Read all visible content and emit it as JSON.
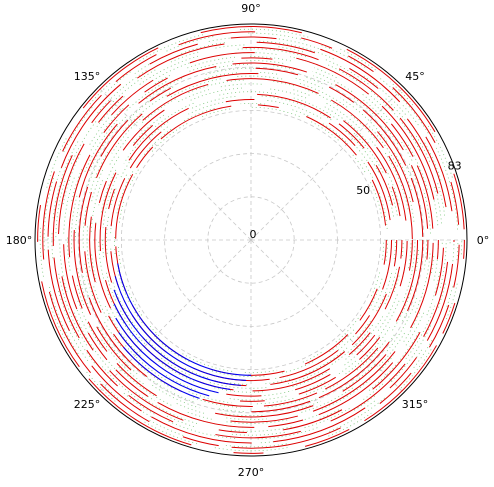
{
  "chart_data": {
    "type": "polar-segments",
    "title": "",
    "theta_ticks_deg": [
      0,
      45,
      90,
      135,
      180,
      225,
      270,
      315
    ],
    "theta_tick_labels": [
      "0°",
      "45°",
      "90°",
      "135°",
      "180°",
      "225°",
      "270°",
      "315°"
    ],
    "r_tick_labels": [
      "0",
      "50",
      "83"
    ],
    "r_ticks": [
      0,
      50,
      83
    ],
    "rlim": [
      0,
      83
    ],
    "grid": true,
    "colors": {
      "primary": "#dd0000",
      "highlight": "#0000ee",
      "dots": "#7ec87e",
      "grid": "#c8c8c8"
    },
    "series": [
      {
        "color": "#dd0000",
        "style": "solid-arcs",
        "r_range": [
          50,
          83
        ],
        "description_values": {
          "radial_levels": [
            52,
            54,
            56,
            58,
            60,
            62,
            64,
            66,
            68,
            70,
            72,
            74,
            76,
            78,
            80,
            82
          ],
          "gaps_deg": [
            [
              60,
              75
            ],
            [
              100,
              115
            ],
            [
              150,
              160
            ],
            [
              240,
              255
            ],
            [
              330,
              340
            ]
          ]
        }
      },
      {
        "color": "#0000ee",
        "style": "solid-arcs",
        "arcs": [
          {
            "r": 52,
            "theta": [
              190,
              270
            ]
          },
          {
            "r": 54,
            "theta": [
              195,
              268
            ]
          },
          {
            "r": 56,
            "theta": [
              200,
              266
            ]
          },
          {
            "r": 58,
            "theta": [
              205,
              262
            ]
          },
          {
            "r": 60,
            "theta": [
              210,
              258
            ]
          },
          {
            "r": 62,
            "theta": [
              215,
              255
            ]
          },
          {
            "r": 64,
            "theta": [
              220,
              252
            ]
          }
        ]
      },
      {
        "color": "#7ec87e",
        "style": "dotted-arcs",
        "r_range": [
          50,
          83
        ]
      }
    ]
  }
}
